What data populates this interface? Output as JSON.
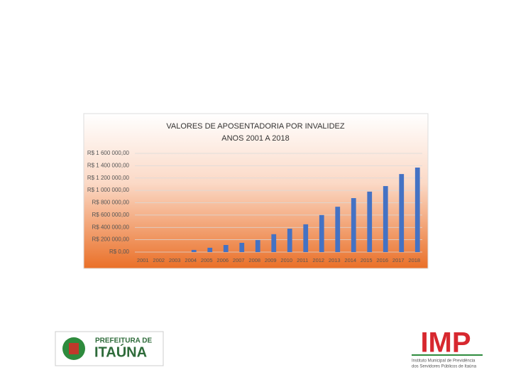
{
  "chart_data": {
    "type": "bar",
    "title": "VALORES DE APOSENTADORIA POR INVALIDEZ",
    "subtitle": "ANOS 2001 A 2018",
    "categories": [
      "2001",
      "2002",
      "2003",
      "2004",
      "2005",
      "2006",
      "2007",
      "2008",
      "2009",
      "2010",
      "2011",
      "2012",
      "2013",
      "2014",
      "2015",
      "2016",
      "2017",
      "2018"
    ],
    "values": [
      0,
      0,
      0,
      35000,
      70000,
      115000,
      150000,
      195000,
      290000,
      380000,
      450000,
      600000,
      735000,
      875000,
      980000,
      1070000,
      1265000,
      1370000
    ],
    "color": "#4472c4",
    "ylim": [
      0,
      1600000
    ],
    "yticks": [
      {
        "value": 0,
        "label": "R$ 0,00"
      },
      {
        "value": 200000,
        "label": "R$ 200 000,00"
      },
      {
        "value": 400000,
        "label": "R$ 400 000,00"
      },
      {
        "value": 600000,
        "label": "R$ 600 000,00"
      },
      {
        "value": 800000,
        "label": "R$ 800 000,00"
      },
      {
        "value": 1000000,
        "label": "R$ 1 000 000,00"
      },
      {
        "value": 1200000,
        "label": "R$ 1 200 000,00"
      },
      {
        "value": 1400000,
        "label": "R$ 1 400 000,00"
      },
      {
        "value": 1600000,
        "label": "R$ 1 600 000,00"
      }
    ],
    "grid": true
  },
  "logos": {
    "left_top": "PREFEITURA DE",
    "left_main": "ITAÚNA",
    "right_main": "IMP",
    "right_line1": "Instituto Municipal de Previdência",
    "right_line2": "dos Servidores Públicos de Itaúna"
  }
}
